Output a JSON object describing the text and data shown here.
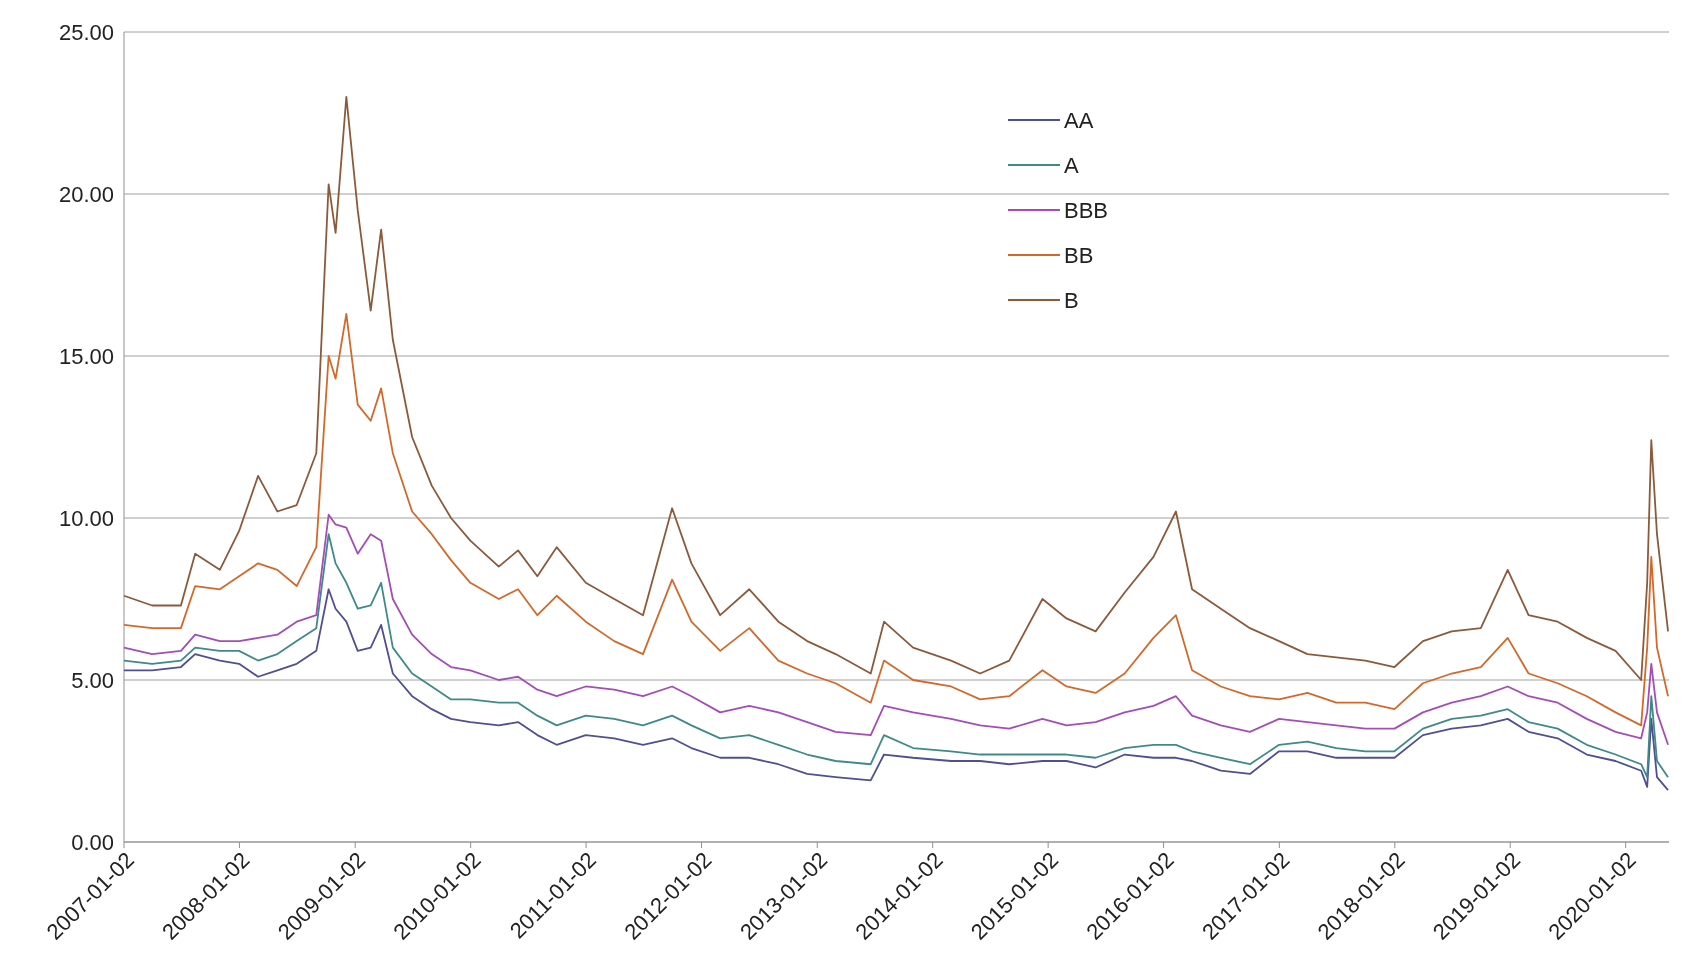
{
  "chart_data": {
    "type": "line",
    "x": [
      "2007-01-02",
      "2007-04-01",
      "2007-07-01",
      "2007-08-15",
      "2007-11-01",
      "2008-01-01",
      "2008-03-01",
      "2008-05-01",
      "2008-07-01",
      "2008-09-01",
      "2008-10-10",
      "2008-11-01",
      "2008-12-05",
      "2009-01-10",
      "2009-02-20",
      "2009-03-25",
      "2009-05-01",
      "2009-07-01",
      "2009-09-01",
      "2009-11-01",
      "2010-01-01",
      "2010-04-01",
      "2010-06-01",
      "2010-08-01",
      "2010-10-01",
      "2011-01-01",
      "2011-04-01",
      "2011-07-01",
      "2011-10-01",
      "2011-12-01",
      "2012-03-01",
      "2012-06-01",
      "2012-09-01",
      "2012-12-01",
      "2013-03-01",
      "2013-06-20",
      "2013-08-01",
      "2013-11-01",
      "2014-03-01",
      "2014-06-01",
      "2014-09-01",
      "2014-12-15",
      "2015-03-01",
      "2015-06-01",
      "2015-09-01",
      "2015-12-01",
      "2016-02-10",
      "2016-04-01",
      "2016-07-01",
      "2016-10-01",
      "2017-01-01",
      "2017-04-01",
      "2017-07-01",
      "2017-10-01",
      "2018-01-01",
      "2018-04-01",
      "2018-07-01",
      "2018-10-01",
      "2018-12-25",
      "2019-03-01",
      "2019-06-01",
      "2019-09-01",
      "2019-12-01",
      "2020-02-20",
      "2020-03-10",
      "2020-03-23",
      "2020-04-10",
      "2020-05-15"
    ],
    "series": [
      {
        "name": "AA",
        "color": "#4f4f91",
        "values": [
          5.3,
          5.3,
          5.4,
          5.8,
          5.6,
          5.5,
          5.1,
          5.3,
          5.5,
          5.9,
          7.8,
          7.2,
          6.8,
          5.9,
          6.0,
          6.7,
          5.2,
          4.5,
          4.1,
          3.8,
          3.7,
          3.6,
          3.7,
          3.3,
          3.0,
          3.3,
          3.2,
          3.0,
          3.2,
          2.9,
          2.6,
          2.6,
          2.4,
          2.1,
          2.0,
          1.9,
          2.7,
          2.6,
          2.5,
          2.5,
          2.4,
          2.5,
          2.5,
          2.3,
          2.7,
          2.6,
          2.6,
          2.5,
          2.2,
          2.1,
          2.8,
          2.8,
          2.6,
          2.6,
          2.6,
          3.3,
          3.5,
          3.6,
          3.8,
          3.4,
          3.2,
          2.7,
          2.5,
          2.2,
          1.7,
          3.8,
          2.0,
          1.6
        ]
      },
      {
        "name": "A",
        "color": "#3d8a88",
        "values": [
          5.6,
          5.5,
          5.6,
          6.0,
          5.9,
          5.9,
          5.6,
          5.8,
          6.2,
          6.6,
          9.5,
          8.6,
          8.0,
          7.2,
          7.3,
          8.0,
          6.0,
          5.2,
          4.8,
          4.4,
          4.4,
          4.3,
          4.3,
          3.9,
          3.6,
          3.9,
          3.8,
          3.6,
          3.9,
          3.6,
          3.2,
          3.3,
          3.0,
          2.7,
          2.5,
          2.4,
          3.3,
          2.9,
          2.8,
          2.7,
          2.7,
          2.7,
          2.7,
          2.6,
          2.9,
          3.0,
          3.0,
          2.8,
          2.6,
          2.4,
          3.0,
          3.1,
          2.9,
          2.8,
          2.8,
          3.5,
          3.8,
          3.9,
          4.1,
          3.7,
          3.5,
          3.0,
          2.7,
          2.4,
          2.0,
          4.5,
          2.5,
          2.0
        ]
      },
      {
        "name": "BBB",
        "color": "#a44cb7",
        "values": [
          6.0,
          5.8,
          5.9,
          6.4,
          6.2,
          6.2,
          6.3,
          6.4,
          6.8,
          7.0,
          10.1,
          9.8,
          9.7,
          8.9,
          9.5,
          9.3,
          7.5,
          6.4,
          5.8,
          5.4,
          5.3,
          5.0,
          5.1,
          4.7,
          4.5,
          4.8,
          4.7,
          4.5,
          4.8,
          4.5,
          4.0,
          4.2,
          4.0,
          3.7,
          3.4,
          3.3,
          4.2,
          4.0,
          3.8,
          3.6,
          3.5,
          3.8,
          3.6,
          3.7,
          4.0,
          4.2,
          4.5,
          3.9,
          3.6,
          3.4,
          3.8,
          3.7,
          3.6,
          3.5,
          3.5,
          4.0,
          4.3,
          4.5,
          4.8,
          4.5,
          4.3,
          3.8,
          3.4,
          3.2,
          4.0,
          5.5,
          4.0,
          3.0
        ]
      },
      {
        "name": "BB",
        "color": "#d2692a",
        "values": [
          6.7,
          6.6,
          6.6,
          7.9,
          7.8,
          8.2,
          8.6,
          8.4,
          7.9,
          9.1,
          15.0,
          14.3,
          16.3,
          13.5,
          13.0,
          14.0,
          12.0,
          10.2,
          9.5,
          8.7,
          8.0,
          7.5,
          7.8,
          7.0,
          7.6,
          6.8,
          6.2,
          5.8,
          8.1,
          6.8,
          5.9,
          6.6,
          5.6,
          5.2,
          4.9,
          4.3,
          5.6,
          5.0,
          4.8,
          4.4,
          4.5,
          5.3,
          4.8,
          4.6,
          5.2,
          6.3,
          7.0,
          5.3,
          4.8,
          4.5,
          4.4,
          4.6,
          4.3,
          4.3,
          4.1,
          4.9,
          5.2,
          5.4,
          6.3,
          5.2,
          4.9,
          4.5,
          4.0,
          3.6,
          6.0,
          8.8,
          6.0,
          4.5
        ]
      },
      {
        "name": "B",
        "color": "#8b5a3a",
        "values": [
          7.6,
          7.3,
          7.3,
          8.9,
          8.4,
          9.6,
          11.3,
          10.2,
          10.4,
          12.0,
          20.3,
          18.8,
          23.0,
          19.5,
          16.4,
          18.9,
          15.5,
          12.5,
          11.0,
          10.0,
          9.3,
          8.5,
          9.0,
          8.2,
          9.1,
          8.0,
          7.5,
          7.0,
          10.3,
          8.6,
          7.0,
          7.8,
          6.8,
          6.2,
          5.8,
          5.2,
          6.8,
          6.0,
          5.6,
          5.2,
          5.6,
          7.5,
          6.9,
          6.5,
          7.7,
          8.8,
          10.2,
          7.8,
          7.2,
          6.6,
          6.2,
          5.8,
          5.7,
          5.6,
          5.4,
          6.2,
          6.5,
          6.6,
          8.4,
          7.0,
          6.8,
          6.3,
          5.9,
          5.0,
          8.0,
          12.4,
          9.5,
          6.5
        ]
      }
    ],
    "xlim": [
      "2007-01-02",
      "2020-05-18"
    ],
    "xticks": [
      "2007-01-02",
      "2008-01-02",
      "2009-01-02",
      "2010-01-02",
      "2011-01-02",
      "2012-01-02",
      "2013-01-02",
      "2014-01-02",
      "2015-01-02",
      "2016-01-02",
      "2017-01-02",
      "2018-01-02",
      "2019-01-02",
      "2020-01-02"
    ],
    "ylim": [
      0,
      25
    ],
    "yticks": [
      {
        "value": 0,
        "label": "0.00"
      },
      {
        "value": 5,
        "label": "5.00"
      },
      {
        "value": 10,
        "label": "10.00"
      },
      {
        "value": 15,
        "label": "15.00"
      },
      {
        "value": 20,
        "label": "20.00"
      },
      {
        "value": 25,
        "label": "25.00"
      }
    ],
    "grid": "y",
    "legend": "top",
    "marker": "none",
    "line_style": "solid"
  }
}
